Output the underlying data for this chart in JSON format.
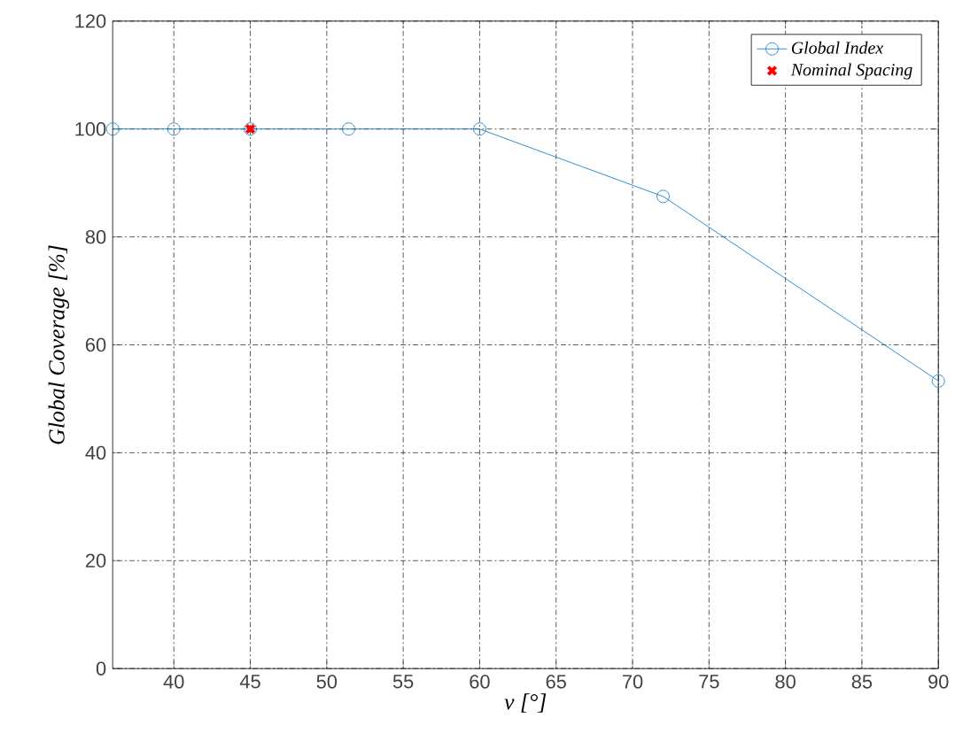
{
  "chart_data": {
    "type": "line",
    "xlabel": "ν [°]",
    "ylabel": "Global Coverage [%]",
    "xlim": [
      36,
      90
    ],
    "ylim": [
      0,
      120
    ],
    "xticks": [
      40,
      45,
      50,
      55,
      60,
      65,
      70,
      75,
      80,
      85,
      90
    ],
    "yticks": [
      0,
      20,
      40,
      60,
      80,
      100,
      120
    ],
    "grid": true,
    "legend": "top right",
    "series": [
      {
        "name": "Global Index",
        "marker": "circle",
        "line_style": "solid",
        "color": "#0072bd",
        "x": [
          36,
          40,
          45,
          51.43,
          60,
          72,
          90
        ],
        "values": [
          100,
          100,
          100,
          100,
          100,
          87.5,
          53.3
        ]
      },
      {
        "name": "Nominal Spacing",
        "type": "scatter",
        "marker": "cross",
        "color": "#ff0000",
        "x": [
          45
        ],
        "values": [
          100
        ]
      }
    ]
  }
}
